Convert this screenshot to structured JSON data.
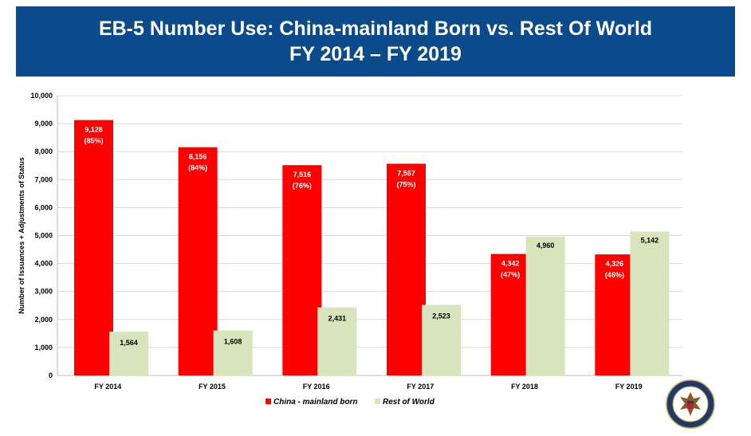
{
  "header": {
    "title_line1": "EB-5 Number Use: China-mainland Born vs. Rest Of World",
    "title_line2": "FY 2014 – FY 2019"
  },
  "colors": {
    "banner": "#0b4a8b",
    "china": "#ff0000",
    "rest": "#d8e4bc"
  },
  "chart_data": {
    "type": "bar",
    "categories": [
      "FY 2014",
      "FY 2015",
      "FY 2016",
      "FY 2017",
      "FY 2018",
      "FY 2019"
    ],
    "series": [
      {
        "name": "China - mainland born",
        "values": [
          9128,
          8156,
          7516,
          7567,
          4342,
          4326
        ],
        "labels": [
          "9,128",
          "8,156",
          "7,516",
          "7,567",
          "4,342",
          "4,326"
        ],
        "percent_labels": [
          "(85%)",
          "(84%)",
          "(76%)",
          "(75%)",
          "(47%)",
          "(46%)"
        ]
      },
      {
        "name": "Rest of World",
        "values": [
          1564,
          1608,
          2431,
          2523,
          4960,
          5142
        ],
        "labels": [
          "1,564",
          "1,608",
          "2,431",
          "2,523",
          "4,960",
          "5,142"
        ]
      }
    ],
    "ylabel": "Number of Issuances + Adjustments of Status",
    "ylim": [
      0,
      10000
    ],
    "yticks": [
      0,
      1000,
      2000,
      3000,
      4000,
      5000,
      6000,
      7000,
      8000,
      9000,
      10000
    ],
    "ytick_labels": [
      "0",
      "1,000",
      "2,000",
      "3,000",
      "4,000",
      "5,000",
      "6,000",
      "7,000",
      "8,000",
      "9,000",
      "10,000"
    ],
    "grid": true,
    "legend_position": "bottom-center"
  },
  "seal": {
    "icon": "department-of-state-seal-icon"
  }
}
